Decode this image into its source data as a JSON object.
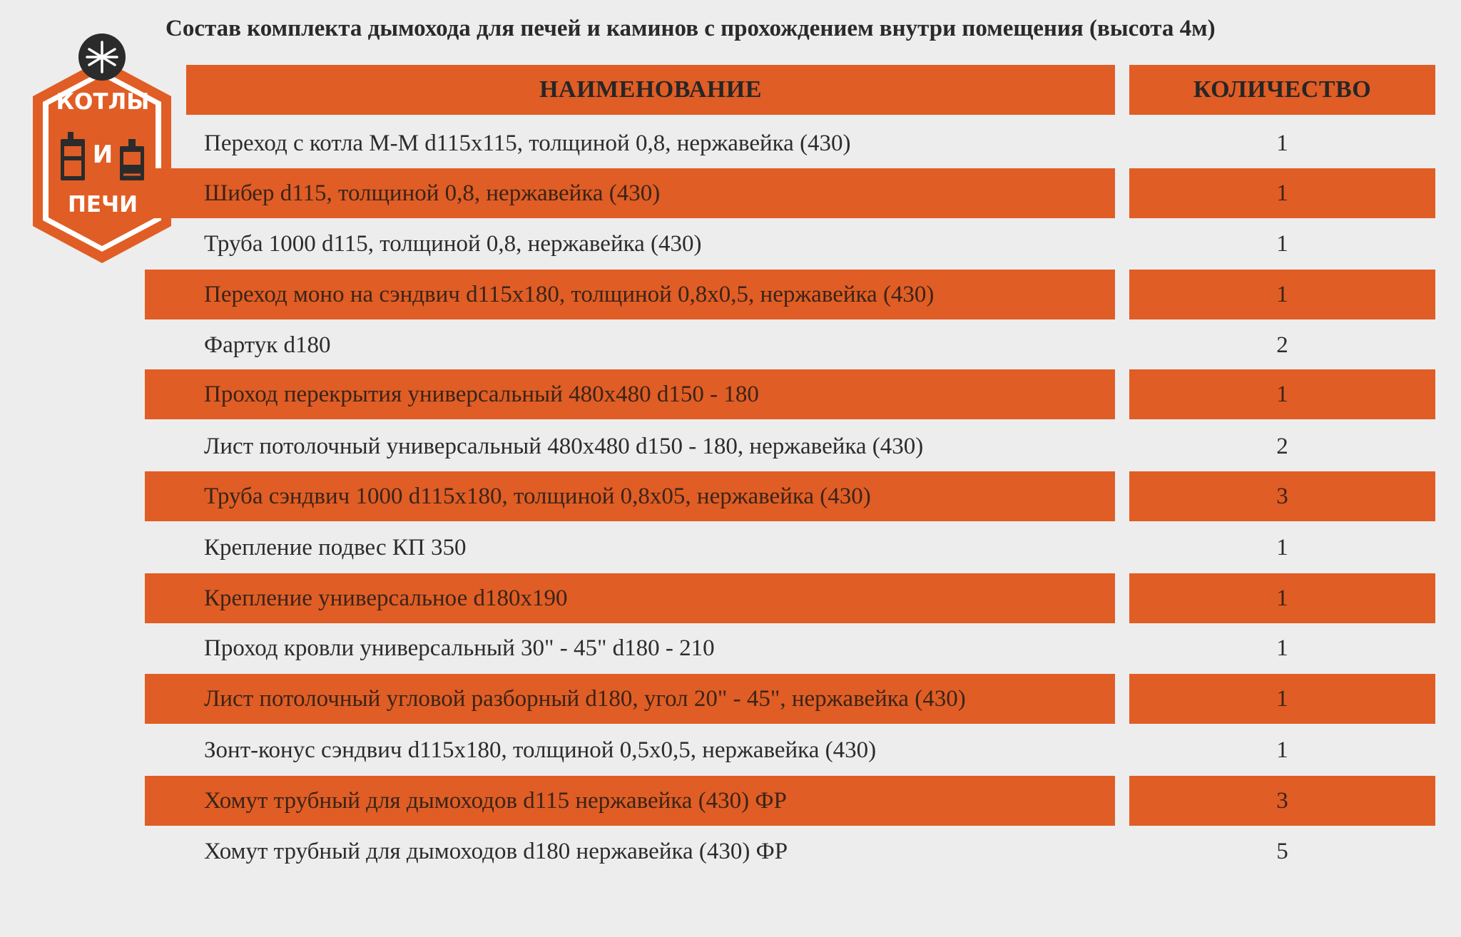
{
  "title": "Состав комплекта дымохода для печей и каминов с прохождением внутри помещения (высота 4м)",
  "logo": {
    "line1": "КОТЛЫ",
    "line2": "И",
    "line3": "ПЕЧИ",
    "icon": "snowflake-icon",
    "color": "#e05d25"
  },
  "table": {
    "headers": {
      "name": "НАИМЕНОВАНИЕ",
      "qty": "КОЛИЧЕСТВО"
    },
    "rows": [
      {
        "name": "Переход с котла М-М d115x115, толщиной 0,8, нержавейка (430)",
        "qty": "1"
      },
      {
        "name": "Шибер d115, толщиной 0,8, нержавейка (430)",
        "qty": "1"
      },
      {
        "name": "Труба 1000 d115, толщиной 0,8, нержавейка (430)",
        "qty": "1"
      },
      {
        "name": "Переход моно на сэндвич d115x180, толщиной 0,8x0,5, нержавейка (430)",
        "qty": "1"
      },
      {
        "name": "Фартук d180",
        "qty": "2"
      },
      {
        "name": "Проход перекрытия универсальный 480x480 d150 - 180",
        "qty": "1"
      },
      {
        "name": "Лист потолочный универсальный 480x480 d150 - 180, нержавейка (430)",
        "qty": "2"
      },
      {
        "name": "Труба сэндвич 1000 d115x180, толщиной 0,8x05, нержавейка (430)",
        "qty": "3"
      },
      {
        "name": "Крепление подвес КП 350",
        "qty": "1"
      },
      {
        "name": "Крепление универсальное d180x190",
        "qty": "1"
      },
      {
        "name": "Проход кровли универсальный 30\" - 45\" d180 - 210",
        "qty": "1"
      },
      {
        "name": "Лист потолочный угловой разборный d180, угол 20\" - 45\", нержавейка (430)",
        "qty": "1"
      },
      {
        "name": "Зонт-конус сэндвич d115x180, толщиной 0,5x0,5, нержавейка (430)",
        "qty": "1"
      },
      {
        "name": "Хомут трубный для дымоходов d115 нержавейка (430) ФР",
        "qty": "3"
      },
      {
        "name": "Хомут трубный для дымоходов d180  нержавейка (430) ФР",
        "qty": "5"
      }
    ]
  }
}
